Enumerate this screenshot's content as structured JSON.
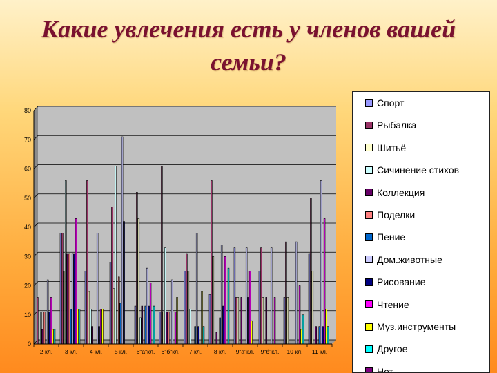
{
  "slide": {
    "title": "Какие увлечения есть у членов вашей семьи?"
  },
  "chart_data": {
    "type": "bar",
    "title": "",
    "xlabel": "",
    "ylabel": "",
    "ylim": [
      0,
      80
    ],
    "y_ticks": [
      0,
      10,
      20,
      30,
      40,
      50,
      60,
      70,
      80
    ],
    "grid": true,
    "legend_position": "right",
    "categories": [
      "2 кл.",
      "3 кл.",
      "4 кл.",
      "5 кл.",
      "6\"а\"кл.",
      "6\"б\"кл.",
      "7 кл.",
      "8 кл.",
      "9\"а\"кл.",
      "9\"б\"кл.",
      "10 кл.",
      "11 кл."
    ],
    "series": [
      {
        "name": "Спорт",
        "color": "#9999ff",
        "values": [
          0,
          38,
          25,
          28,
          13,
          11,
          25,
          17,
          33,
          25,
          16,
          31
        ]
      },
      {
        "name": "Рыбалка",
        "color": "#993366",
        "values": [
          16,
          38,
          56,
          47,
          52,
          61,
          31,
          56,
          16,
          33,
          35,
          50
        ]
      },
      {
        "name": "Шитьё",
        "color": "#ffffcc",
        "values": [
          0,
          25,
          18,
          19,
          43,
          11,
          25,
          30,
          16,
          16,
          16,
          25
        ]
      },
      {
        "name": "Сичинение стихов",
        "color": "#ccffff",
        "values": [
          11,
          56,
          12,
          61,
          9,
          33,
          12,
          0,
          0,
          0,
          0,
          0
        ]
      },
      {
        "name": "Коллекция",
        "color": "#660066",
        "values": [
          5,
          31,
          6,
          0,
          13,
          11,
          0,
          4,
          16,
          16,
          0,
          6
        ]
      },
      {
        "name": "Поделки",
        "color": "#ff8080",
        "values": [
          11,
          31,
          0,
          23,
          0,
          11,
          0,
          0,
          0,
          0,
          0,
          0
        ]
      },
      {
        "name": "Пение",
        "color": "#0066cc",
        "values": [
          0,
          12,
          0,
          14,
          13,
          0,
          6,
          9,
          0,
          0,
          0,
          6
        ]
      },
      {
        "name": "Дом.животные",
        "color": "#ccccff",
        "values": [
          22,
          31,
          38,
          71,
          26,
          22,
          38,
          34,
          33,
          33,
          35,
          56
        ]
      },
      {
        "name": "Рисование",
        "color": "#000080",
        "values": [
          11,
          31,
          6,
          42,
          13,
          0,
          6,
          13,
          16,
          0,
          0,
          6
        ]
      },
      {
        "name": "Чтение",
        "color": "#ff00ff",
        "values": [
          16,
          43,
          12,
          0,
          21,
          11,
          0,
          30,
          25,
          16,
          20,
          43
        ]
      },
      {
        "name": "Муз.инструменты",
        "color": "#ffff00",
        "values": [
          5,
          12,
          12,
          0,
          0,
          16,
          18,
          0,
          8,
          0,
          5,
          12
        ]
      },
      {
        "name": "Другое",
        "color": "#00ffff",
        "values": [
          5,
          12,
          0,
          0,
          13,
          0,
          6,
          26,
          0,
          0,
          10,
          6
        ]
      },
      {
        "name": "Нет",
        "color": "#800080",
        "values": [
          0,
          0,
          0,
          0,
          0,
          0,
          0,
          0,
          0,
          0,
          0,
          0
        ]
      }
    ]
  }
}
